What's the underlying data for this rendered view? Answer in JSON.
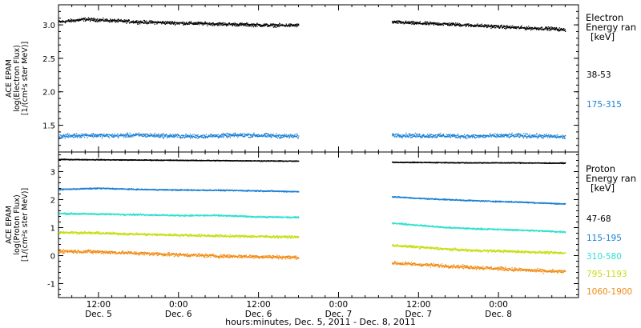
{
  "footer": {
    "xlabel": "hours:minutes, Dec.  5, 2011 - Dec.  8, 2011"
  },
  "chart_data": [
    {
      "type": "scatter",
      "panel": "electron",
      "ylabel_lines": [
        "ACE EPAM",
        "log(Electron Flux)",
        "[1/(cm²s ster MeV)]"
      ],
      "ylim": [
        1.1,
        3.3
      ],
      "yticks": [
        1.5,
        2.0,
        2.5,
        3.0
      ],
      "ytick_labels": [
        "1.5",
        "2.0",
        "2.5",
        "3.0"
      ],
      "xlim": [
        6.0,
        84.0
      ],
      "data_gap_hours": [
        42.0,
        56.0
      ],
      "legend_title": [
        "Electron",
        "Energy ran",
        "[keV]"
      ],
      "series": [
        {
          "name": "38-53",
          "color": "#000000",
          "x": [
            6,
            10,
            14,
            18,
            22,
            26,
            30,
            34,
            38,
            42,
            56,
            60,
            64,
            68,
            72,
            76,
            80,
            82
          ],
          "y": [
            3.05,
            3.09,
            3.07,
            3.05,
            3.04,
            3.03,
            3.02,
            3.01,
            3.0,
            3.0,
            3.05,
            3.03,
            3.02,
            3.0,
            2.98,
            2.96,
            2.95,
            2.93
          ],
          "noise": 0.035
        },
        {
          "name": "175-315",
          "color": "#1a7fd4",
          "x": [
            6,
            10,
            14,
            18,
            22,
            26,
            30,
            34,
            38,
            42,
            56,
            60,
            64,
            68,
            72,
            76,
            80,
            82
          ],
          "y": [
            1.34,
            1.36,
            1.35,
            1.36,
            1.35,
            1.34,
            1.35,
            1.36,
            1.35,
            1.34,
            1.36,
            1.35,
            1.35,
            1.34,
            1.35,
            1.35,
            1.34,
            1.33
          ],
          "noise": 0.045
        }
      ]
    },
    {
      "type": "scatter",
      "panel": "proton",
      "ylabel_lines": [
        "ACE EPAM",
        "log(Proton Flux)",
        "[1/(cm²s ster MeV)]"
      ],
      "ylim": [
        -1.5,
        3.7
      ],
      "yticks": [
        -1,
        0,
        1,
        2,
        3
      ],
      "ytick_labels": [
        "-1",
        "0",
        "1",
        "2",
        "3"
      ],
      "xlim": [
        6.0,
        84.0
      ],
      "data_gap_hours": [
        42.0,
        56.0
      ],
      "legend_title": [
        "Proton",
        "Energy ran",
        "[keV]"
      ],
      "series": [
        {
          "name": "47-68",
          "color": "#000000",
          "x": [
            6,
            12,
            18,
            24,
            30,
            36,
            42,
            56,
            62,
            68,
            74,
            80,
            82
          ],
          "y": [
            3.45,
            3.44,
            3.43,
            3.42,
            3.41,
            3.4,
            3.39,
            3.35,
            3.34,
            3.33,
            3.33,
            3.32,
            3.32
          ],
          "noise": 0.02
        },
        {
          "name": "115-195",
          "color": "#1a7fd4",
          "x": [
            6,
            12,
            18,
            24,
            30,
            36,
            42,
            56,
            60,
            64,
            68,
            72,
            76,
            80,
            82
          ],
          "y": [
            2.38,
            2.42,
            2.38,
            2.36,
            2.35,
            2.33,
            2.3,
            2.12,
            2.06,
            2.02,
            1.98,
            1.95,
            1.92,
            1.88,
            1.86
          ],
          "noise": 0.03
        },
        {
          "name": "310-580",
          "color": "#2ee0d0",
          "x": [
            6,
            12,
            18,
            24,
            30,
            36,
            42,
            56,
            60,
            64,
            68,
            72,
            76,
            80,
            82
          ],
          "y": [
            1.52,
            1.5,
            1.48,
            1.45,
            1.45,
            1.4,
            1.38,
            1.18,
            1.1,
            1.02,
            0.98,
            0.95,
            0.92,
            0.88,
            0.86
          ],
          "noise": 0.04
        },
        {
          "name": "795-1193",
          "color": "#c8dc10",
          "x": [
            6,
            12,
            18,
            24,
            30,
            36,
            42,
            56,
            60,
            64,
            68,
            72,
            76,
            80,
            82
          ],
          "y": [
            0.85,
            0.82,
            0.78,
            0.75,
            0.72,
            0.7,
            0.68,
            0.38,
            0.32,
            0.25,
            0.2,
            0.18,
            0.15,
            0.12,
            0.1
          ],
          "noise": 0.06
        },
        {
          "name": "1060-1900",
          "color": "#f08a10",
          "x": [
            6,
            12,
            18,
            24,
            30,
            36,
            42,
            56,
            60,
            64,
            68,
            72,
            76,
            80,
            82
          ],
          "y": [
            0.18,
            0.15,
            0.1,
            0.05,
            0.0,
            -0.02,
            -0.05,
            -0.25,
            -0.3,
            -0.35,
            -0.4,
            -0.45,
            -0.5,
            -0.55,
            -0.55
          ],
          "noise": 0.09
        }
      ]
    }
  ],
  "xaxis": {
    "ticks": [
      {
        "hour": 12,
        "top": "12:00",
        "bottom": "Dec. 5"
      },
      {
        "hour": 24,
        "top": "0:00",
        "bottom": "Dec. 6"
      },
      {
        "hour": 36,
        "top": "12:00",
        "bottom": "Dec. 6"
      },
      {
        "hour": 48,
        "top": "0:00",
        "bottom": "Dec. 7"
      },
      {
        "hour": 60,
        "top": "12:00",
        "bottom": "Dec. 7"
      },
      {
        "hour": 72,
        "top": "0:00",
        "bottom": "Dec. 8"
      }
    ]
  }
}
